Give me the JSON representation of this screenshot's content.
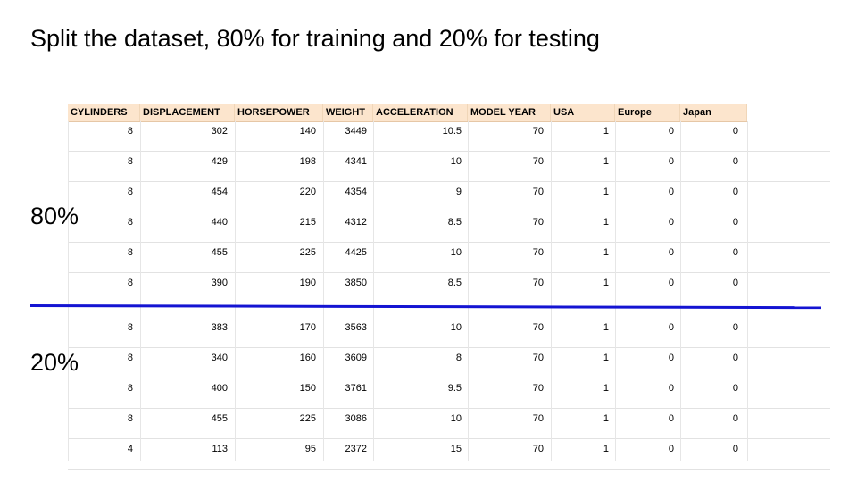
{
  "slide": {
    "title": "Split the dataset, 80% for training and 20% for testing",
    "train_label": "80%",
    "test_label": "20%",
    "divider_color": "#1414d2",
    "header_bg_color": "#fce5cd"
  },
  "table": {
    "columns": [
      "CYLINDERS",
      "DISPLACEMENT",
      "HORSEPOWER",
      "WEIGHT",
      "ACCELERATION",
      "MODEL YEAR",
      "USA",
      "Europe",
      "Japan"
    ],
    "rows": [
      [
        "8",
        "302",
        "140",
        "3449",
        "10.5",
        "70",
        "1",
        "0",
        "0"
      ],
      [
        "8",
        "429",
        "198",
        "4341",
        "10",
        "70",
        "1",
        "0",
        "0"
      ],
      [
        "8",
        "454",
        "220",
        "4354",
        "9",
        "70",
        "1",
        "0",
        "0"
      ],
      [
        "8",
        "440",
        "215",
        "4312",
        "8.5",
        "70",
        "1",
        "0",
        "0"
      ],
      [
        "8",
        "455",
        "225",
        "4425",
        "10",
        "70",
        "1",
        "0",
        "0"
      ],
      [
        "8",
        "390",
        "190",
        "3850",
        "8.5",
        "70",
        "1",
        "0",
        "0"
      ],
      [
        "8",
        "383",
        "170",
        "3563",
        "10",
        "70",
        "1",
        "0",
        "0"
      ],
      [
        "8",
        "340",
        "160",
        "3609",
        "8",
        "70",
        "1",
        "0",
        "0"
      ],
      [
        "8",
        "400",
        "150",
        "3761",
        "9.5",
        "70",
        "1",
        "0",
        "0"
      ],
      [
        "8",
        "455",
        "225",
        "3086",
        "10",
        "70",
        "1",
        "0",
        "0"
      ],
      [
        "4",
        "113",
        "95",
        "2372",
        "15",
        "70",
        "1",
        "0",
        "0"
      ]
    ]
  }
}
